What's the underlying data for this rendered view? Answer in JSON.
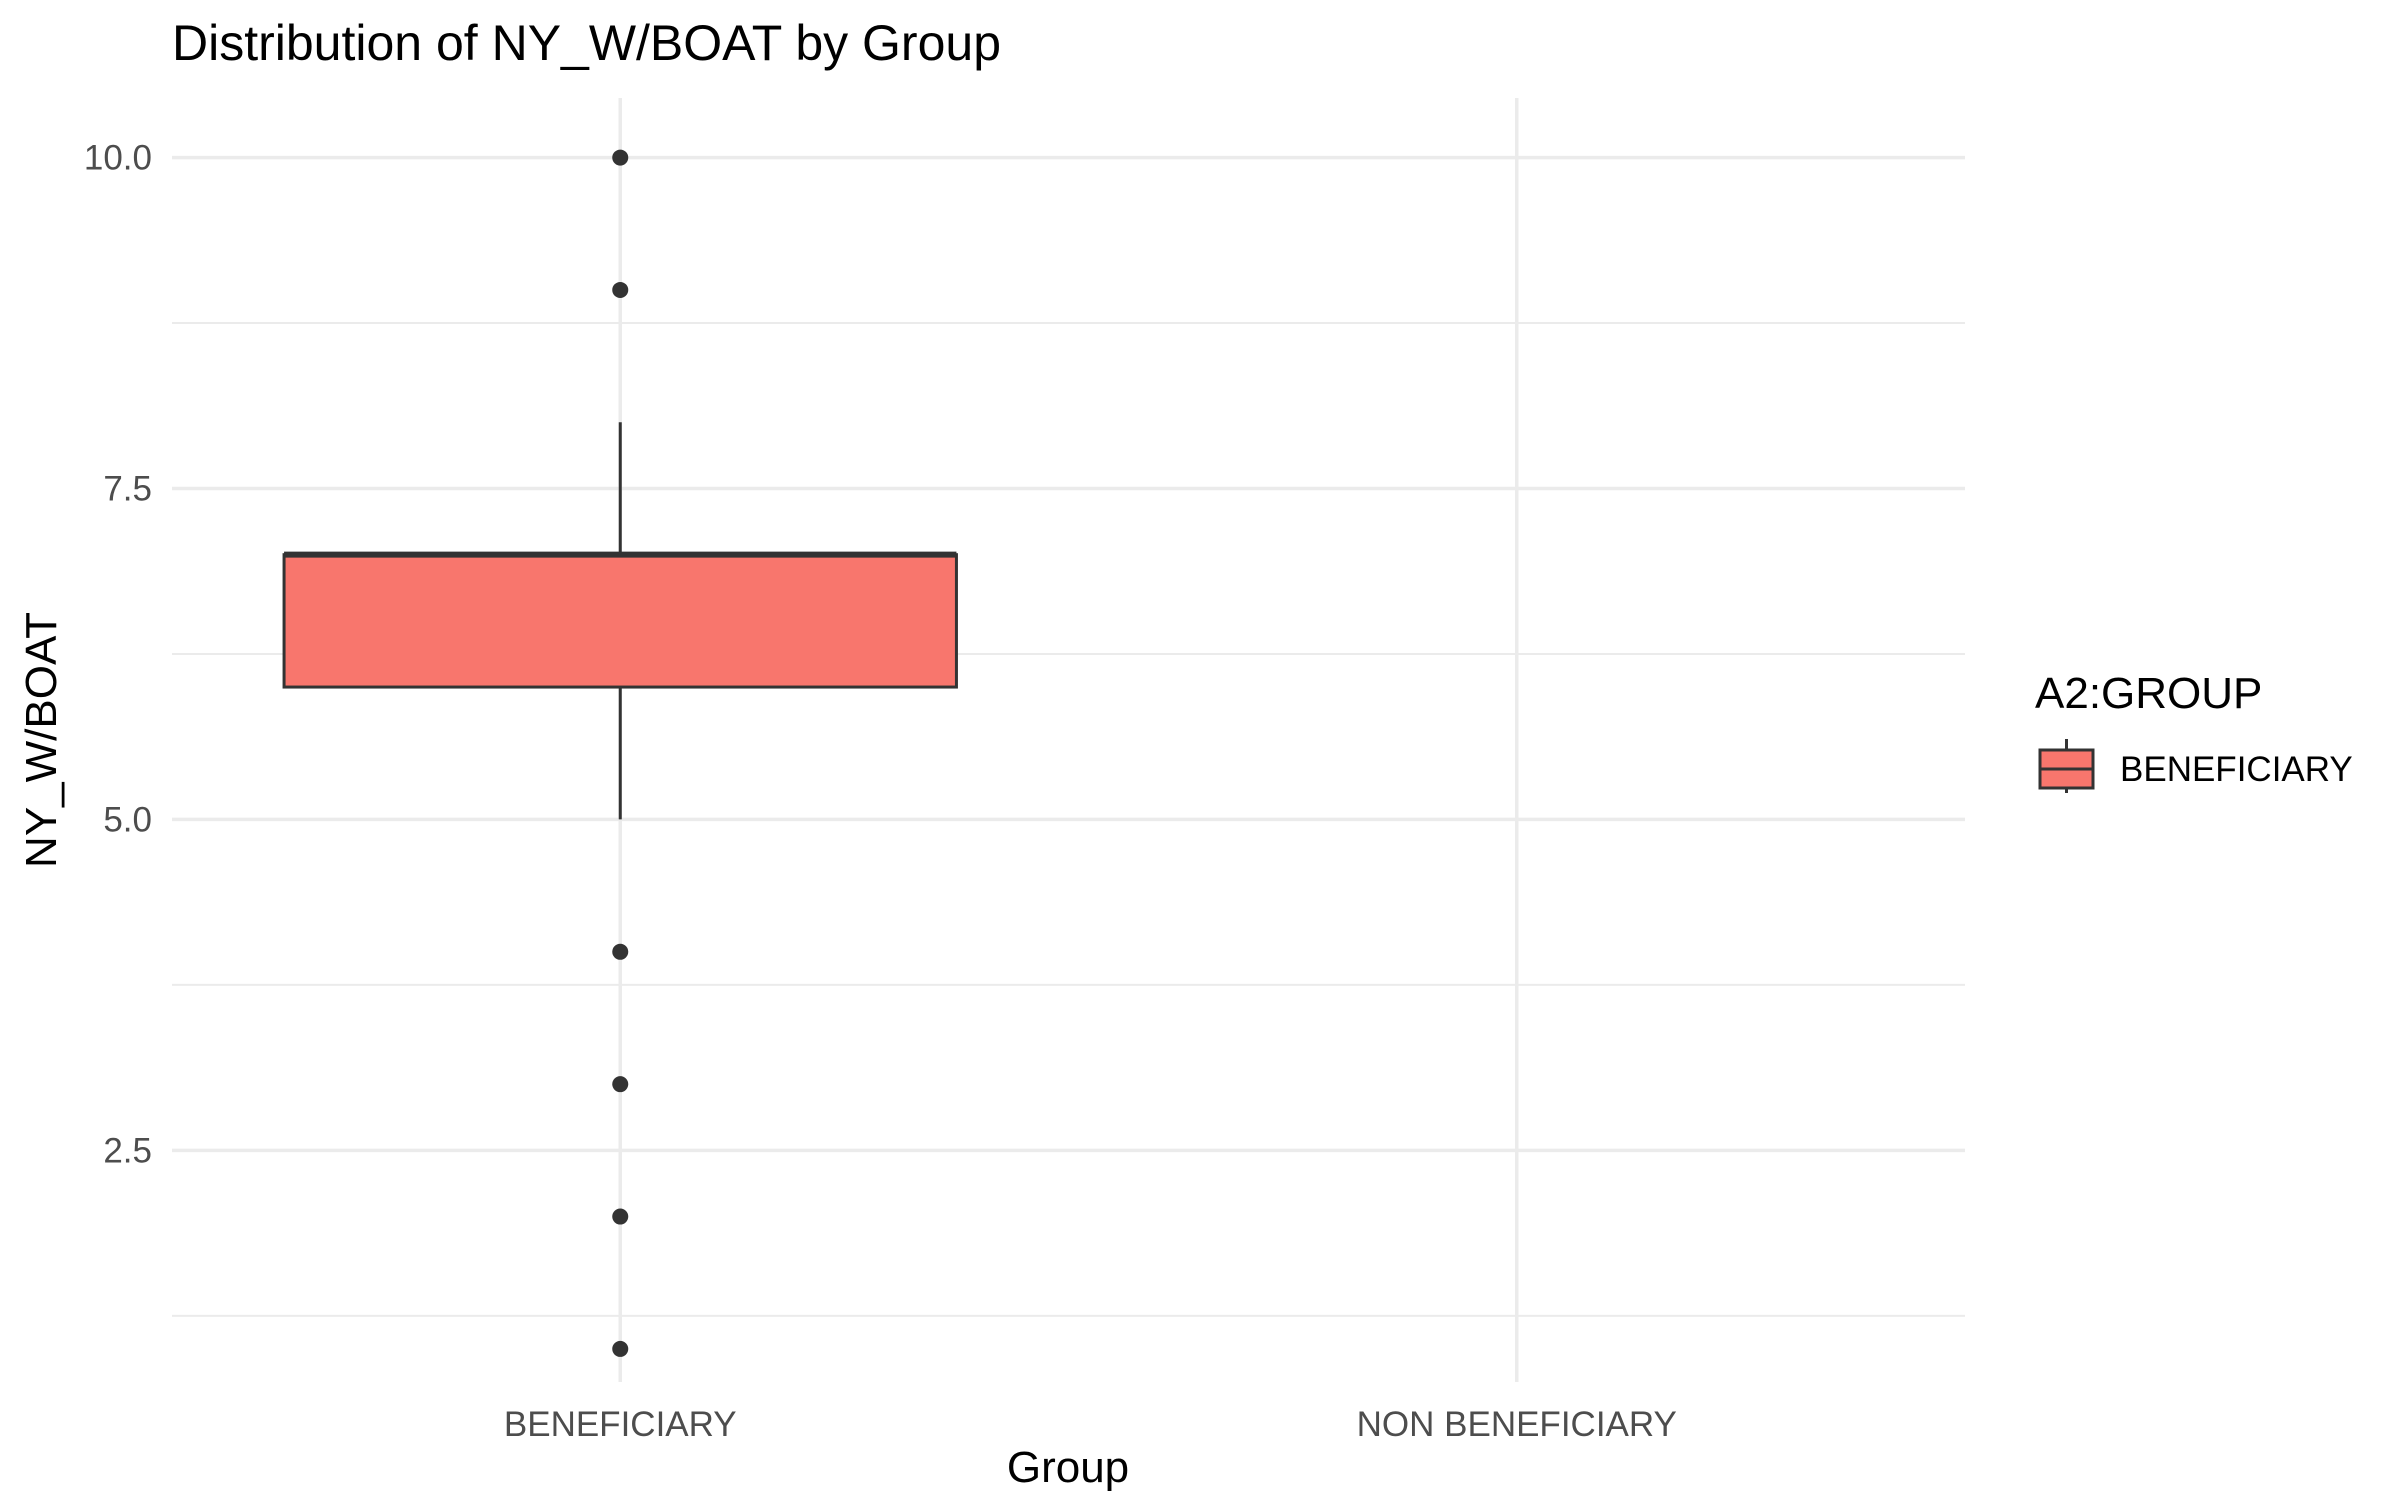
{
  "chart_data": {
    "type": "boxplot",
    "title": "Distribution of NY_W/BOAT by Group",
    "xlabel": "Group",
    "ylabel": "NY_W/BOAT",
    "categories": [
      "BENEFICIARY",
      "NON BENEFICIARY"
    ],
    "ylim": [
      0.75,
      10.45
    ],
    "yticks": [
      2.5,
      5.0,
      7.5,
      10.0
    ],
    "ytick_labels": [
      "2.5",
      "5.0",
      "7.5",
      "10.0"
    ],
    "y_minor_gridlines": [
      1.25,
      3.75,
      6.25,
      8.75
    ],
    "grid": true,
    "boxes": [
      {
        "category": "BENEFICIARY",
        "q1": 6,
        "median": 7,
        "q3": 7,
        "whisker_low": 5,
        "whisker_high": 8,
        "outliers": [
          1,
          2,
          3,
          4,
          9,
          10
        ],
        "color": "#F8766D"
      }
    ],
    "legend": {
      "title": "A2:GROUP",
      "position": "right",
      "entries": [
        {
          "label": "BENEFICIARY",
          "color": "#F8766D"
        }
      ]
    }
  }
}
